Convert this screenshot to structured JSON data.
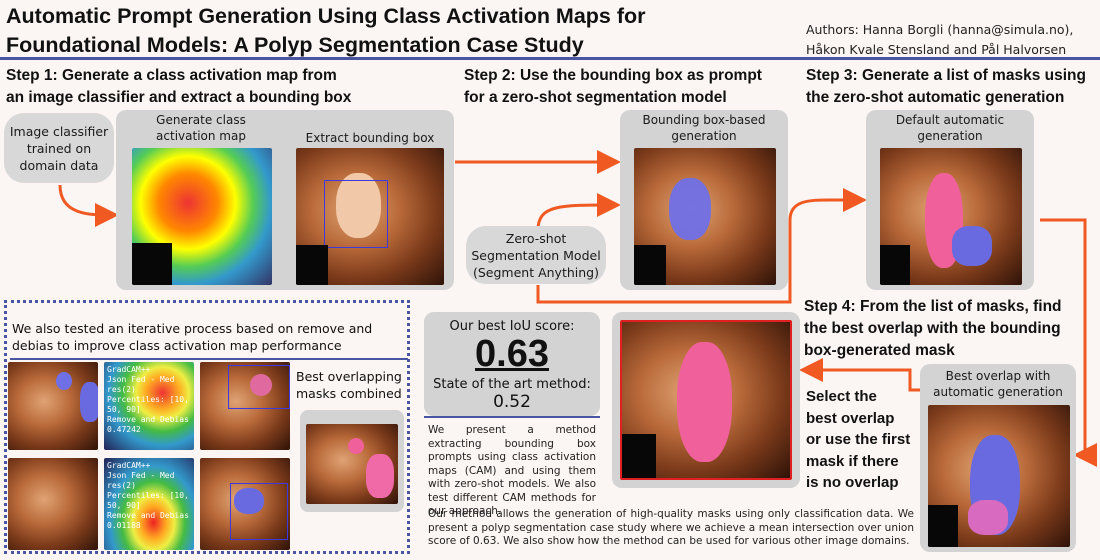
{
  "header": {
    "title_line1": "Automatic Prompt Generation Using Class Activation Maps for",
    "title_line2": "Foundational Models: A Polyp Segmentation Case Study",
    "authors_line1": "Authors: Hanna Borgli (hanna@simula.no),",
    "authors_line2": "Håkon Kvale Stensland and Pål Halvorsen"
  },
  "steps": {
    "step1_line1": "Step 1: Generate a class activation map from",
    "step1_line2": "an image classifier and extract a bounding box",
    "step2_line1": "Step 2: Use the bounding box as prompt",
    "step2_line2": "for a zero-shot segmentation model",
    "step3_line1": "Step 3: Generate a list of masks using",
    "step3_line2": "the zero-shot automatic generation",
    "step4_line1": "Step 4: From the list of masks, find",
    "step4_line2": "the best overlap with the bounding",
    "step4_line3": "box-generated mask"
  },
  "nodes": {
    "classifier_line1": "Image classifier",
    "classifier_line2": "trained on",
    "classifier_line3": "domain data",
    "cam_label_line1": "Generate class",
    "cam_label_line2": "activation map",
    "bbox_label": "Extract bounding box",
    "bbox_gen_line1": "Bounding box-based",
    "bbox_gen_line2": "generation",
    "zeroshot_line1": "Zero-shot",
    "zeroshot_line2": "Segmentation Model",
    "zeroshot_line3": "(Segment Anything)",
    "default_gen_line1": "Default automatic",
    "default_gen_line2": "generation",
    "best_overlap_line1": "Best overlap with",
    "best_overlap_line2": "automatic generation",
    "select_line1": "Select the",
    "select_line2": "best overlap",
    "select_line3": "or use the first",
    "select_line4": "mask if there",
    "select_line5": "is no overlap"
  },
  "iterative_panel": {
    "text_line1": "We also tested an iterative process based on remove and",
    "text_line2": "debias to improve class activation map performance",
    "best_masks_line1": "Best overlapping",
    "best_masks_line2": "masks combined",
    "gradcam_top": [
      "GradCAM++",
      "Json Fed - Med res(2)",
      "Percentiles: [10, 50, 90]",
      "Remove and Debias",
      "0.47242"
    ],
    "gradcam_bottom": [
      "GradCAM++",
      "Json Fed - Med res(2)",
      "Percentiles: [10, 50, 90]",
      "Remove and Debias",
      "0.01188"
    ]
  },
  "results": {
    "iou_label": "Our best IoU score:",
    "iou_value": "0.63",
    "sota_label": "State of the art method:",
    "sota_value": "0.52",
    "desc1": "We present a method extracting bounding box prompts using class activation maps (CAM) and using them with zero-shot models. We also test different CAM methods for our approach.",
    "desc2": "Our method allows the generation of high-quality masks using only classification data. We present a polyp segmentation case study where we achieve a mean intersection over union score of 0.63. We also show how the method can be used for various other image domains."
  },
  "colors": {
    "accent_blue": "#4a55a2",
    "arrow_orange": "#f05a22",
    "mask_pink": "#f0609a",
    "mask_blue": "#6a6ae0"
  }
}
